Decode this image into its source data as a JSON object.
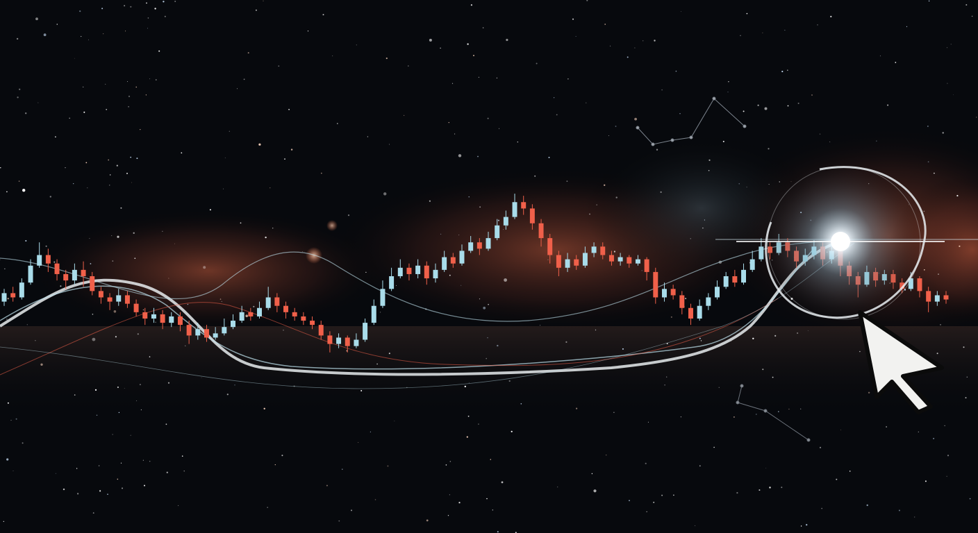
{
  "scene": {
    "background": "#07090d",
    "nebula_color": "#c25a3c",
    "bull_color": "#a9dcea",
    "bear_color": "#f0604a",
    "line_color": "#bfe2ee",
    "flare_color": "#ffffff",
    "icons": [
      "cursor-arrow-icon",
      "highlight-ring-icon",
      "lens-flare-icon",
      "constellation-icon"
    ]
  },
  "chart_data": {
    "type": "candlestick",
    "title": "",
    "xlabel": "",
    "ylabel": "",
    "axes_visible": false,
    "grid": false,
    "candles": [
      {
        "o": 38,
        "c": 42,
        "h": 44,
        "l": 36
      },
      {
        "o": 42,
        "c": 40,
        "h": 45,
        "l": 38
      },
      {
        "o": 40,
        "c": 47,
        "h": 49,
        "l": 39
      },
      {
        "o": 47,
        "c": 55,
        "h": 58,
        "l": 46
      },
      {
        "o": 55,
        "c": 60,
        "h": 66,
        "l": 54
      },
      {
        "o": 60,
        "c": 56,
        "h": 63,
        "l": 52
      },
      {
        "o": 56,
        "c": 51,
        "h": 58,
        "l": 48
      },
      {
        "o": 51,
        "c": 48,
        "h": 53,
        "l": 44
      },
      {
        "o": 48,
        "c": 53,
        "h": 56,
        "l": 46
      },
      {
        "o": 53,
        "c": 50,
        "h": 57,
        "l": 45
      },
      {
        "o": 50,
        "c": 43,
        "h": 52,
        "l": 41
      },
      {
        "o": 43,
        "c": 40,
        "h": 45,
        "l": 37
      },
      {
        "o": 40,
        "c": 38,
        "h": 42,
        "l": 34
      },
      {
        "o": 38,
        "c": 41,
        "h": 44,
        "l": 36
      },
      {
        "o": 41,
        "c": 37,
        "h": 43,
        "l": 35
      },
      {
        "o": 37,
        "c": 33,
        "h": 39,
        "l": 31
      },
      {
        "o": 33,
        "c": 30,
        "h": 35,
        "l": 27
      },
      {
        "o": 30,
        "c": 32,
        "h": 35,
        "l": 28
      },
      {
        "o": 32,
        "c": 28,
        "h": 34,
        "l": 25
      },
      {
        "o": 28,
        "c": 31,
        "h": 33,
        "l": 26
      },
      {
        "o": 31,
        "c": 27,
        "h": 33,
        "l": 24
      },
      {
        "o": 27,
        "c": 22,
        "h": 29,
        "l": 18
      },
      {
        "o": 22,
        "c": 25,
        "h": 28,
        "l": 20
      },
      {
        "o": 25,
        "c": 21,
        "h": 27,
        "l": 19
      },
      {
        "o": 21,
        "c": 23,
        "h": 26,
        "l": 20
      },
      {
        "o": 23,
        "c": 26,
        "h": 30,
        "l": 22
      },
      {
        "o": 26,
        "c": 29,
        "h": 32,
        "l": 25
      },
      {
        "o": 29,
        "c": 33,
        "h": 36,
        "l": 28
      },
      {
        "o": 33,
        "c": 31,
        "h": 35,
        "l": 29
      },
      {
        "o": 31,
        "c": 35,
        "h": 38,
        "l": 30
      },
      {
        "o": 35,
        "c": 40,
        "h": 45,
        "l": 34
      },
      {
        "o": 40,
        "c": 36,
        "h": 42,
        "l": 33
      },
      {
        "o": 36,
        "c": 33,
        "h": 38,
        "l": 30
      },
      {
        "o": 33,
        "c": 31,
        "h": 35,
        "l": 29
      },
      {
        "o": 31,
        "c": 29,
        "h": 33,
        "l": 27
      },
      {
        "o": 29,
        "c": 27,
        "h": 31,
        "l": 25
      },
      {
        "o": 27,
        "c": 22,
        "h": 29,
        "l": 20
      },
      {
        "o": 22,
        "c": 18,
        "h": 24,
        "l": 14
      },
      {
        "o": 18,
        "c": 21,
        "h": 23,
        "l": 16
      },
      {
        "o": 21,
        "c": 17,
        "h": 22,
        "l": 14
      },
      {
        "o": 17,
        "c": 20,
        "h": 23,
        "l": 16
      },
      {
        "o": 20,
        "c": 28,
        "h": 30,
        "l": 19
      },
      {
        "o": 28,
        "c": 36,
        "h": 39,
        "l": 27
      },
      {
        "o": 36,
        "c": 44,
        "h": 48,
        "l": 35
      },
      {
        "o": 44,
        "c": 50,
        "h": 54,
        "l": 43
      },
      {
        "o": 50,
        "c": 54,
        "h": 58,
        "l": 49
      },
      {
        "o": 54,
        "c": 51,
        "h": 56,
        "l": 48
      },
      {
        "o": 51,
        "c": 55,
        "h": 58,
        "l": 49
      },
      {
        "o": 55,
        "c": 49,
        "h": 57,
        "l": 46
      },
      {
        "o": 49,
        "c": 53,
        "h": 56,
        "l": 47
      },
      {
        "o": 53,
        "c": 59,
        "h": 62,
        "l": 52
      },
      {
        "o": 59,
        "c": 56,
        "h": 61,
        "l": 54
      },
      {
        "o": 56,
        "c": 62,
        "h": 65,
        "l": 55
      },
      {
        "o": 62,
        "c": 66,
        "h": 69,
        "l": 61
      },
      {
        "o": 66,
        "c": 63,
        "h": 68,
        "l": 60
      },
      {
        "o": 63,
        "c": 68,
        "h": 71,
        "l": 62
      },
      {
        "o": 68,
        "c": 74,
        "h": 77,
        "l": 67
      },
      {
        "o": 74,
        "c": 78,
        "h": 81,
        "l": 72
      },
      {
        "o": 78,
        "c": 85,
        "h": 89,
        "l": 77
      },
      {
        "o": 85,
        "c": 82,
        "h": 88,
        "l": 79
      },
      {
        "o": 82,
        "c": 75,
        "h": 84,
        "l": 72
      },
      {
        "o": 75,
        "c": 68,
        "h": 77,
        "l": 64
      },
      {
        "o": 68,
        "c": 60,
        "h": 70,
        "l": 56
      },
      {
        "o": 60,
        "c": 54,
        "h": 62,
        "l": 50
      },
      {
        "o": 54,
        "c": 58,
        "h": 61,
        "l": 52
      },
      {
        "o": 58,
        "c": 55,
        "h": 60,
        "l": 53
      },
      {
        "o": 55,
        "c": 61,
        "h": 64,
        "l": 54
      },
      {
        "o": 61,
        "c": 64,
        "h": 66,
        "l": 59
      },
      {
        "o": 64,
        "c": 60,
        "h": 66,
        "l": 58
      },
      {
        "o": 60,
        "c": 57,
        "h": 62,
        "l": 55
      },
      {
        "o": 57,
        "c": 59,
        "h": 61,
        "l": 55
      },
      {
        "o": 59,
        "c": 56,
        "h": 60,
        "l": 54
      },
      {
        "o": 56,
        "c": 58,
        "h": 60,
        "l": 55
      },
      {
        "o": 58,
        "c": 52,
        "h": 59,
        "l": 48
      },
      {
        "o": 52,
        "c": 40,
        "h": 54,
        "l": 37
      },
      {
        "o": 40,
        "c": 44,
        "h": 47,
        "l": 38
      },
      {
        "o": 44,
        "c": 41,
        "h": 46,
        "l": 39
      },
      {
        "o": 41,
        "c": 35,
        "h": 43,
        "l": 32
      },
      {
        "o": 35,
        "c": 30,
        "h": 37,
        "l": 27
      },
      {
        "o": 30,
        "c": 36,
        "h": 39,
        "l": 29
      },
      {
        "o": 36,
        "c": 40,
        "h": 42,
        "l": 34
      },
      {
        "o": 40,
        "c": 45,
        "h": 48,
        "l": 39
      },
      {
        "o": 45,
        "c": 50,
        "h": 52,
        "l": 44
      },
      {
        "o": 50,
        "c": 47,
        "h": 53,
        "l": 45
      },
      {
        "o": 47,
        "c": 53,
        "h": 56,
        "l": 46
      },
      {
        "o": 53,
        "c": 58,
        "h": 62,
        "l": 52
      },
      {
        "o": 58,
        "c": 64,
        "h": 68,
        "l": 57
      },
      {
        "o": 64,
        "c": 61,
        "h": 66,
        "l": 58
      },
      {
        "o": 61,
        "c": 66,
        "h": 70,
        "l": 60
      },
      {
        "o": 66,
        "c": 62,
        "h": 68,
        "l": 59
      },
      {
        "o": 62,
        "c": 57,
        "h": 64,
        "l": 54
      },
      {
        "o": 57,
        "c": 60,
        "h": 63,
        "l": 55
      },
      {
        "o": 60,
        "c": 64,
        "h": 67,
        "l": 58
      },
      {
        "o": 64,
        "c": 58,
        "h": 66,
        "l": 55
      },
      {
        "o": 58,
        "c": 62,
        "h": 65,
        "l": 56
      },
      {
        "o": 62,
        "c": 55,
        "h": 64,
        "l": 50
      },
      {
        "o": 55,
        "c": 50,
        "h": 57,
        "l": 46
      },
      {
        "o": 50,
        "c": 46,
        "h": 52,
        "l": 40
      },
      {
        "o": 46,
        "c": 52,
        "h": 55,
        "l": 45
      },
      {
        "o": 52,
        "c": 48,
        "h": 54,
        "l": 45
      },
      {
        "o": 48,
        "c": 51,
        "h": 53,
        "l": 46
      },
      {
        "o": 51,
        "c": 47,
        "h": 53,
        "l": 44
      },
      {
        "o": 47,
        "c": 44,
        "h": 49,
        "l": 42
      },
      {
        "o": 44,
        "c": 49,
        "h": 52,
        "l": 43
      },
      {
        "o": 49,
        "c": 43,
        "h": 50,
        "l": 40
      },
      {
        "o": 43,
        "c": 38,
        "h": 45,
        "l": 33
      },
      {
        "o": 38,
        "c": 41,
        "h": 43,
        "l": 36
      },
      {
        "o": 41,
        "c": 39,
        "h": 43,
        "l": 37
      }
    ]
  }
}
